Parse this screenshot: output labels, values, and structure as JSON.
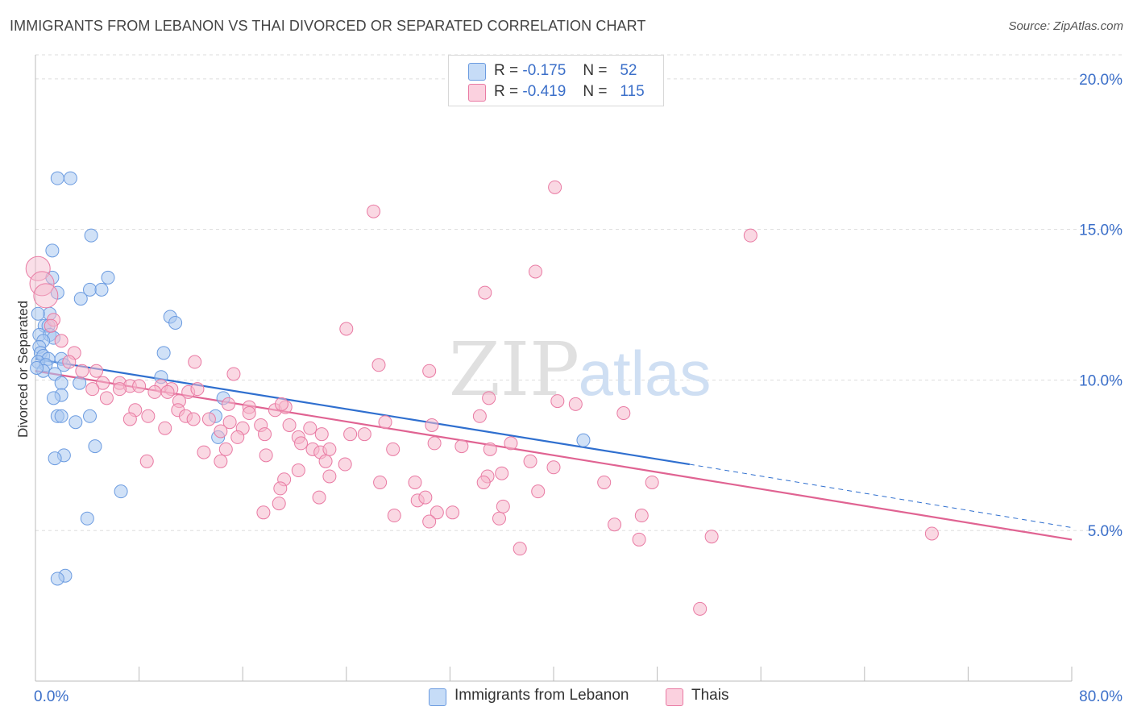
{
  "title": "IMMIGRANTS FROM LEBANON VS THAI DIVORCED OR SEPARATED CORRELATION CHART",
  "source": "Source: ZipAtlas.com",
  "watermark": {
    "zip": "ZIP",
    "atlas": "atlas"
  },
  "legend_top": [
    {
      "r_label": "R =",
      "r_value": "-0.175",
      "n_label": "N =",
      "n_value": "52",
      "color": "#a9c8f0"
    },
    {
      "r_label": "R =",
      "r_value": "-0.419",
      "n_label": "N =",
      "n_value": "115",
      "color": "#f5b8cc"
    }
  ],
  "legend_bottom": [
    {
      "label": "Immigrants from Lebanon",
      "color": "#a9c8f0"
    },
    {
      "label": "Thais",
      "color": "#f5b8cc"
    }
  ],
  "chart_data": {
    "type": "scatter",
    "title": "IMMIGRANTS FROM LEBANON VS THAI DIVORCED OR SEPARATED CORRELATION CHART",
    "xlabel": "",
    "ylabel": "Divorced or Separated",
    "xlim": [
      0,
      80
    ],
    "ylim": [
      0,
      20.8
    ],
    "x_tick_labels": [
      "0.0%",
      "80.0%"
    ],
    "y_ticks": [
      5,
      10,
      15,
      20
    ],
    "y_tick_labels": [
      "5.0%",
      "10.0%",
      "15.0%",
      "20.0%"
    ],
    "grid": true,
    "series": [
      {
        "name": "Immigrants from Lebanon",
        "color": "#6b9be0",
        "fill": "#a9c8f0",
        "trend": {
          "x0": 0,
          "y0": 10.7,
          "x1": 50.5,
          "y1": 7.2,
          "dash_x_end": 80,
          "dash_y_end": 5.1
        },
        "points": [
          [
            1.7,
            16.7
          ],
          [
            2.7,
            16.7
          ],
          [
            4.3,
            14.8
          ],
          [
            1.3,
            14.3
          ],
          [
            5.6,
            13.4
          ],
          [
            1.3,
            13.4
          ],
          [
            4.2,
            13.0
          ],
          [
            5.1,
            13.0
          ],
          [
            1.7,
            12.9
          ],
          [
            3.5,
            12.7
          ],
          [
            1.1,
            12.2
          ],
          [
            10.4,
            12.1
          ],
          [
            10.8,
            11.9
          ],
          [
            0.7,
            11.8
          ],
          [
            1.0,
            11.8
          ],
          [
            0.3,
            11.5
          ],
          [
            1.1,
            11.5
          ],
          [
            1.4,
            11.4
          ],
          [
            0.6,
            11.3
          ],
          [
            0.3,
            11.1
          ],
          [
            9.9,
            10.9
          ],
          [
            0.4,
            10.9
          ],
          [
            0.6,
            10.8
          ],
          [
            1.0,
            10.7
          ],
          [
            2.0,
            10.7
          ],
          [
            0.2,
            10.6
          ],
          [
            0.8,
            10.5
          ],
          [
            2.2,
            10.5
          ],
          [
            0.6,
            10.3
          ],
          [
            1.5,
            10.2
          ],
          [
            9.7,
            10.1
          ],
          [
            3.4,
            9.9
          ],
          [
            2.0,
            9.9
          ],
          [
            14.5,
            9.4
          ],
          [
            2.0,
            9.5
          ],
          [
            1.4,
            9.4
          ],
          [
            1.7,
            8.8
          ],
          [
            2.0,
            8.8
          ],
          [
            4.2,
            8.8
          ],
          [
            13.9,
            8.8
          ],
          [
            3.1,
            8.6
          ],
          [
            14.1,
            8.1
          ],
          [
            4.6,
            7.8
          ],
          [
            42.3,
            8.0
          ],
          [
            2.2,
            7.5
          ],
          [
            1.5,
            7.4
          ],
          [
            6.6,
            6.3
          ],
          [
            4.0,
            5.4
          ],
          [
            2.3,
            3.5
          ],
          [
            1.7,
            3.4
          ],
          [
            0.2,
            12.2
          ],
          [
            0.1,
            10.4
          ]
        ]
      },
      {
        "name": "Thais",
        "color": "#e97aa3",
        "fill": "#f5b8cc",
        "trend": {
          "x0": 0,
          "y0": 10.3,
          "x1": 80,
          "y1": 4.7
        },
        "points": [
          [
            0.2,
            13.7
          ],
          [
            0.5,
            13.2
          ],
          [
            0.8,
            12.8
          ],
          [
            1.4,
            12.0
          ],
          [
            1.2,
            11.8
          ],
          [
            2.0,
            11.3
          ],
          [
            3.0,
            10.9
          ],
          [
            2.6,
            10.6
          ],
          [
            3.6,
            10.3
          ],
          [
            4.7,
            10.3
          ],
          [
            6.5,
            9.9
          ],
          [
            5.2,
            9.9
          ],
          [
            4.4,
            9.7
          ],
          [
            7.3,
            9.8
          ],
          [
            6.5,
            9.7
          ],
          [
            8.0,
            9.8
          ],
          [
            9.7,
            9.8
          ],
          [
            10.5,
            9.7
          ],
          [
            11.8,
            9.6
          ],
          [
            12.5,
            9.7
          ],
          [
            9.2,
            9.6
          ],
          [
            10.2,
            9.6
          ],
          [
            11.1,
            9.3
          ],
          [
            12.3,
            10.6
          ],
          [
            15.3,
            10.2
          ],
          [
            5.5,
            9.4
          ],
          [
            7.7,
            9.0
          ],
          [
            11.0,
            9.0
          ],
          [
            11.6,
            8.8
          ],
          [
            12.2,
            8.7
          ],
          [
            16.5,
            9.1
          ],
          [
            14.9,
            9.2
          ],
          [
            18.5,
            9.0
          ],
          [
            19.3,
            9.1
          ],
          [
            16.5,
            8.9
          ],
          [
            7.3,
            8.7
          ],
          [
            8.7,
            8.8
          ],
          [
            10.0,
            8.4
          ],
          [
            13.4,
            8.7
          ],
          [
            14.3,
            8.3
          ],
          [
            16.0,
            8.4
          ],
          [
            17.4,
            8.5
          ],
          [
            19.6,
            8.5
          ],
          [
            17.7,
            8.2
          ],
          [
            15.6,
            8.1
          ],
          [
            20.3,
            8.1
          ],
          [
            21.2,
            8.4
          ],
          [
            22.1,
            8.2
          ],
          [
            24.3,
            8.2
          ],
          [
            25.4,
            8.2
          ],
          [
            27.0,
            8.6
          ],
          [
            30.6,
            8.5
          ],
          [
            20.5,
            7.9
          ],
          [
            21.4,
            7.7
          ],
          [
            22.0,
            7.6
          ],
          [
            22.7,
            7.7
          ],
          [
            27.6,
            7.7
          ],
          [
            30.8,
            7.9
          ],
          [
            32.9,
            7.8
          ],
          [
            35.1,
            7.7
          ],
          [
            36.7,
            7.9
          ],
          [
            13.0,
            7.6
          ],
          [
            14.7,
            7.7
          ],
          [
            17.8,
            7.5
          ],
          [
            8.6,
            7.3
          ],
          [
            14.3,
            7.3
          ],
          [
            22.4,
            7.3
          ],
          [
            23.9,
            7.2
          ],
          [
            20.3,
            7.0
          ],
          [
            19.2,
            6.7
          ],
          [
            22.7,
            6.8
          ],
          [
            26.6,
            6.6
          ],
          [
            29.3,
            6.6
          ],
          [
            34.9,
            6.8
          ],
          [
            36.0,
            6.9
          ],
          [
            34.6,
            6.6
          ],
          [
            40.0,
            7.1
          ],
          [
            38.2,
            7.3
          ],
          [
            38.8,
            6.3
          ],
          [
            43.9,
            6.6
          ],
          [
            47.6,
            6.6
          ],
          [
            18.9,
            6.4
          ],
          [
            29.5,
            6.0
          ],
          [
            30.1,
            6.1
          ],
          [
            18.8,
            5.9
          ],
          [
            21.9,
            6.1
          ],
          [
            36.1,
            5.8
          ],
          [
            17.6,
            5.6
          ],
          [
            27.7,
            5.5
          ],
          [
            31.0,
            5.6
          ],
          [
            30.4,
            5.3
          ],
          [
            32.2,
            5.6
          ],
          [
            35.8,
            5.4
          ],
          [
            46.8,
            5.5
          ],
          [
            44.7,
            5.2
          ],
          [
            46.6,
            4.7
          ],
          [
            52.2,
            4.8
          ],
          [
            37.4,
            4.4
          ],
          [
            51.3,
            2.4
          ],
          [
            69.2,
            4.9
          ],
          [
            40.1,
            16.4
          ],
          [
            26.1,
            15.6
          ],
          [
            55.2,
            14.8
          ],
          [
            38.6,
            13.6
          ],
          [
            34.7,
            12.9
          ],
          [
            24.0,
            11.7
          ],
          [
            26.5,
            10.5
          ],
          [
            30.4,
            10.3
          ],
          [
            35.0,
            9.4
          ],
          [
            40.3,
            9.3
          ],
          [
            41.7,
            9.2
          ],
          [
            45.4,
            8.9
          ],
          [
            34.3,
            8.8
          ],
          [
            19.0,
            9.2
          ],
          [
            15.0,
            8.6
          ]
        ]
      }
    ]
  }
}
